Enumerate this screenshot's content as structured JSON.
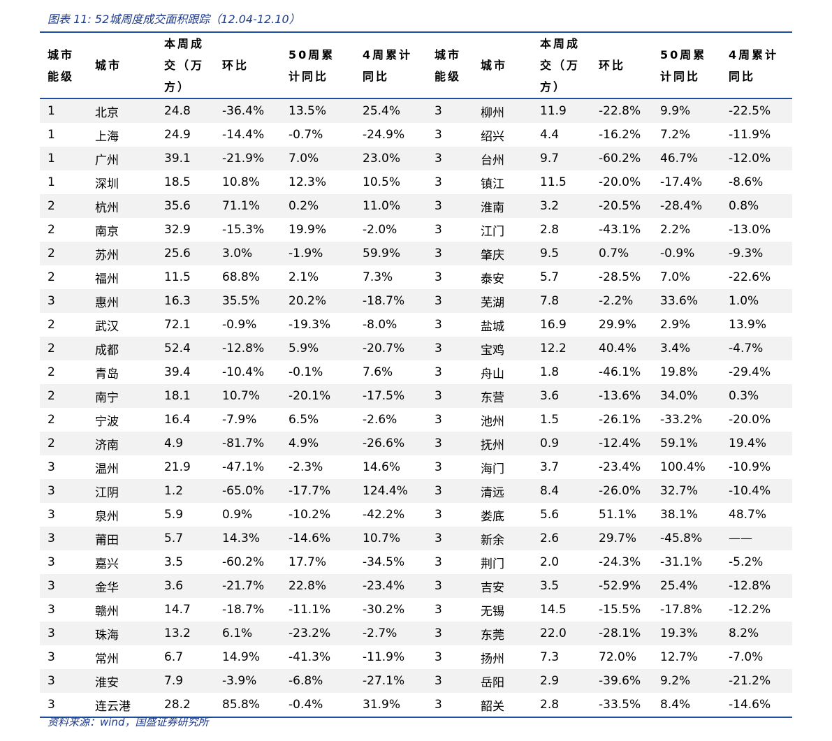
{
  "header": {
    "title": "图表 11: 52城周度成交面积跟踪（12.04-12.10）"
  },
  "table": {
    "columns": [
      "城市能级",
      "城市",
      "本周成交（万方）",
      "环比",
      "50周累计同比",
      "4周累计同比",
      "城市能级",
      "城市",
      "本周成交（万方）",
      "环比",
      "50周累计同比",
      "4周累计同比"
    ],
    "rows": [
      [
        "1",
        "北京",
        "24.8",
        "-36.4%",
        "13.5%",
        "25.4%",
        "3",
        "柳州",
        "11.9",
        "-22.8%",
        "9.9%",
        "-22.5%"
      ],
      [
        "1",
        "上海",
        "24.9",
        "-14.4%",
        "-0.7%",
        "-24.9%",
        "3",
        "绍兴",
        "4.4",
        "-16.2%",
        "7.2%",
        "-11.9%"
      ],
      [
        "1",
        "广州",
        "39.1",
        "-21.9%",
        "7.0%",
        "23.0%",
        "3",
        "台州",
        "9.7",
        "-60.2%",
        "46.7%",
        "-12.0%"
      ],
      [
        "1",
        "深圳",
        "18.5",
        "10.8%",
        "12.3%",
        "10.5%",
        "3",
        "镇江",
        "11.5",
        "-20.0%",
        "-17.4%",
        "-8.6%"
      ],
      [
        "2",
        "杭州",
        "35.6",
        "71.1%",
        "0.2%",
        "11.0%",
        "3",
        "淮南",
        "3.2",
        "-20.5%",
        "-28.4%",
        "0.8%"
      ],
      [
        "2",
        "南京",
        "32.9",
        "-15.3%",
        "19.9%",
        "-2.0%",
        "3",
        "江门",
        "2.8",
        "-43.1%",
        "2.2%",
        "-13.0%"
      ],
      [
        "2",
        "苏州",
        "25.6",
        "3.0%",
        "-1.9%",
        "59.9%",
        "3",
        "肇庆",
        "9.5",
        "0.7%",
        "-0.9%",
        "-9.3%"
      ],
      [
        "2",
        "福州",
        "11.5",
        "68.8%",
        "2.1%",
        "7.3%",
        "3",
        "泰安",
        "5.7",
        "-28.5%",
        "7.0%",
        "-22.6%"
      ],
      [
        "3",
        "惠州",
        "16.3",
        "35.5%",
        "20.2%",
        "-18.7%",
        "3",
        "芜湖",
        "7.8",
        "-2.2%",
        "33.6%",
        "1.0%"
      ],
      [
        "2",
        "武汉",
        "72.1",
        "-0.9%",
        "-19.3%",
        "-8.0%",
        "3",
        "盐城",
        "16.9",
        "29.9%",
        "2.9%",
        "13.9%"
      ],
      [
        "2",
        "成都",
        "52.4",
        "-12.8%",
        "5.9%",
        "-20.7%",
        "3",
        "宝鸡",
        "12.2",
        "40.4%",
        "3.4%",
        "-4.7%"
      ],
      [
        "2",
        "青岛",
        "39.4",
        "-10.4%",
        "-0.1%",
        "7.6%",
        "3",
        "舟山",
        "1.8",
        "-46.1%",
        "19.8%",
        "-29.4%"
      ],
      [
        "2",
        "南宁",
        "18.1",
        "10.7%",
        "-20.1%",
        "-17.5%",
        "3",
        "东营",
        "3.6",
        "-13.6%",
        "34.0%",
        "0.3%"
      ],
      [
        "2",
        "宁波",
        "16.4",
        "-7.9%",
        "6.5%",
        "-2.6%",
        "3",
        "池州",
        "1.5",
        "-26.1%",
        "-33.2%",
        "-20.0%"
      ],
      [
        "2",
        "济南",
        "4.9",
        "-81.7%",
        "4.9%",
        "-26.6%",
        "3",
        "抚州",
        "0.9",
        "-12.4%",
        "59.1%",
        "19.4%"
      ],
      [
        "3",
        "温州",
        "21.9",
        "-47.1%",
        "-2.3%",
        "14.6%",
        "3",
        "海门",
        "3.7",
        "-23.4%",
        "100.4%",
        "-10.9%"
      ],
      [
        "3",
        "江阴",
        "1.2",
        "-65.0%",
        "-17.7%",
        "124.4%",
        "3",
        "清远",
        "8.4",
        "-26.0%",
        "32.7%",
        "-10.4%"
      ],
      [
        "3",
        "泉州",
        "5.9",
        "0.9%",
        "-10.2%",
        "-42.2%",
        "3",
        "娄底",
        "5.6",
        "51.1%",
        "38.1%",
        "48.7%"
      ],
      [
        "3",
        "莆田",
        "5.7",
        "14.3%",
        "-14.6%",
        "10.7%",
        "3",
        "新余",
        "2.6",
        "29.7%",
        "-45.8%",
        "——"
      ],
      [
        "3",
        "嘉兴",
        "3.5",
        "-60.2%",
        "17.7%",
        "-34.5%",
        "3",
        "荆门",
        "2.0",
        "-24.3%",
        "-31.1%",
        "-5.2%"
      ],
      [
        "3",
        "金华",
        "3.6",
        "-21.7%",
        "22.8%",
        "-23.4%",
        "3",
        "吉安",
        "3.5",
        "-52.9%",
        "25.4%",
        "-12.8%"
      ],
      [
        "3",
        "赣州",
        "14.7",
        "-18.7%",
        "-11.1%",
        "-30.2%",
        "3",
        "无锡",
        "14.5",
        "-15.5%",
        "-17.8%",
        "-12.2%"
      ],
      [
        "3",
        "珠海",
        "13.2",
        "6.1%",
        "-23.2%",
        "-2.7%",
        "3",
        "东莞",
        "22.0",
        "-28.1%",
        "19.3%",
        "8.2%"
      ],
      [
        "3",
        "常州",
        "6.7",
        "14.9%",
        "-41.3%",
        "-11.9%",
        "3",
        "扬州",
        "7.3",
        "72.0%",
        "12.7%",
        "-7.0%"
      ],
      [
        "3",
        "淮安",
        "7.9",
        "-3.9%",
        "-6.8%",
        "-27.1%",
        "3",
        "岳阳",
        "2.9",
        "-39.6%",
        "9.2%",
        "-21.2%"
      ],
      [
        "3",
        "连云港",
        "28.2",
        "85.8%",
        "-0.4%",
        "31.9%",
        "3",
        "韶关",
        "2.8",
        "-33.5%",
        "8.4%",
        "-14.6%"
      ]
    ]
  },
  "footer": {
    "source": "资料来源：wind，国盛证券研究所"
  }
}
